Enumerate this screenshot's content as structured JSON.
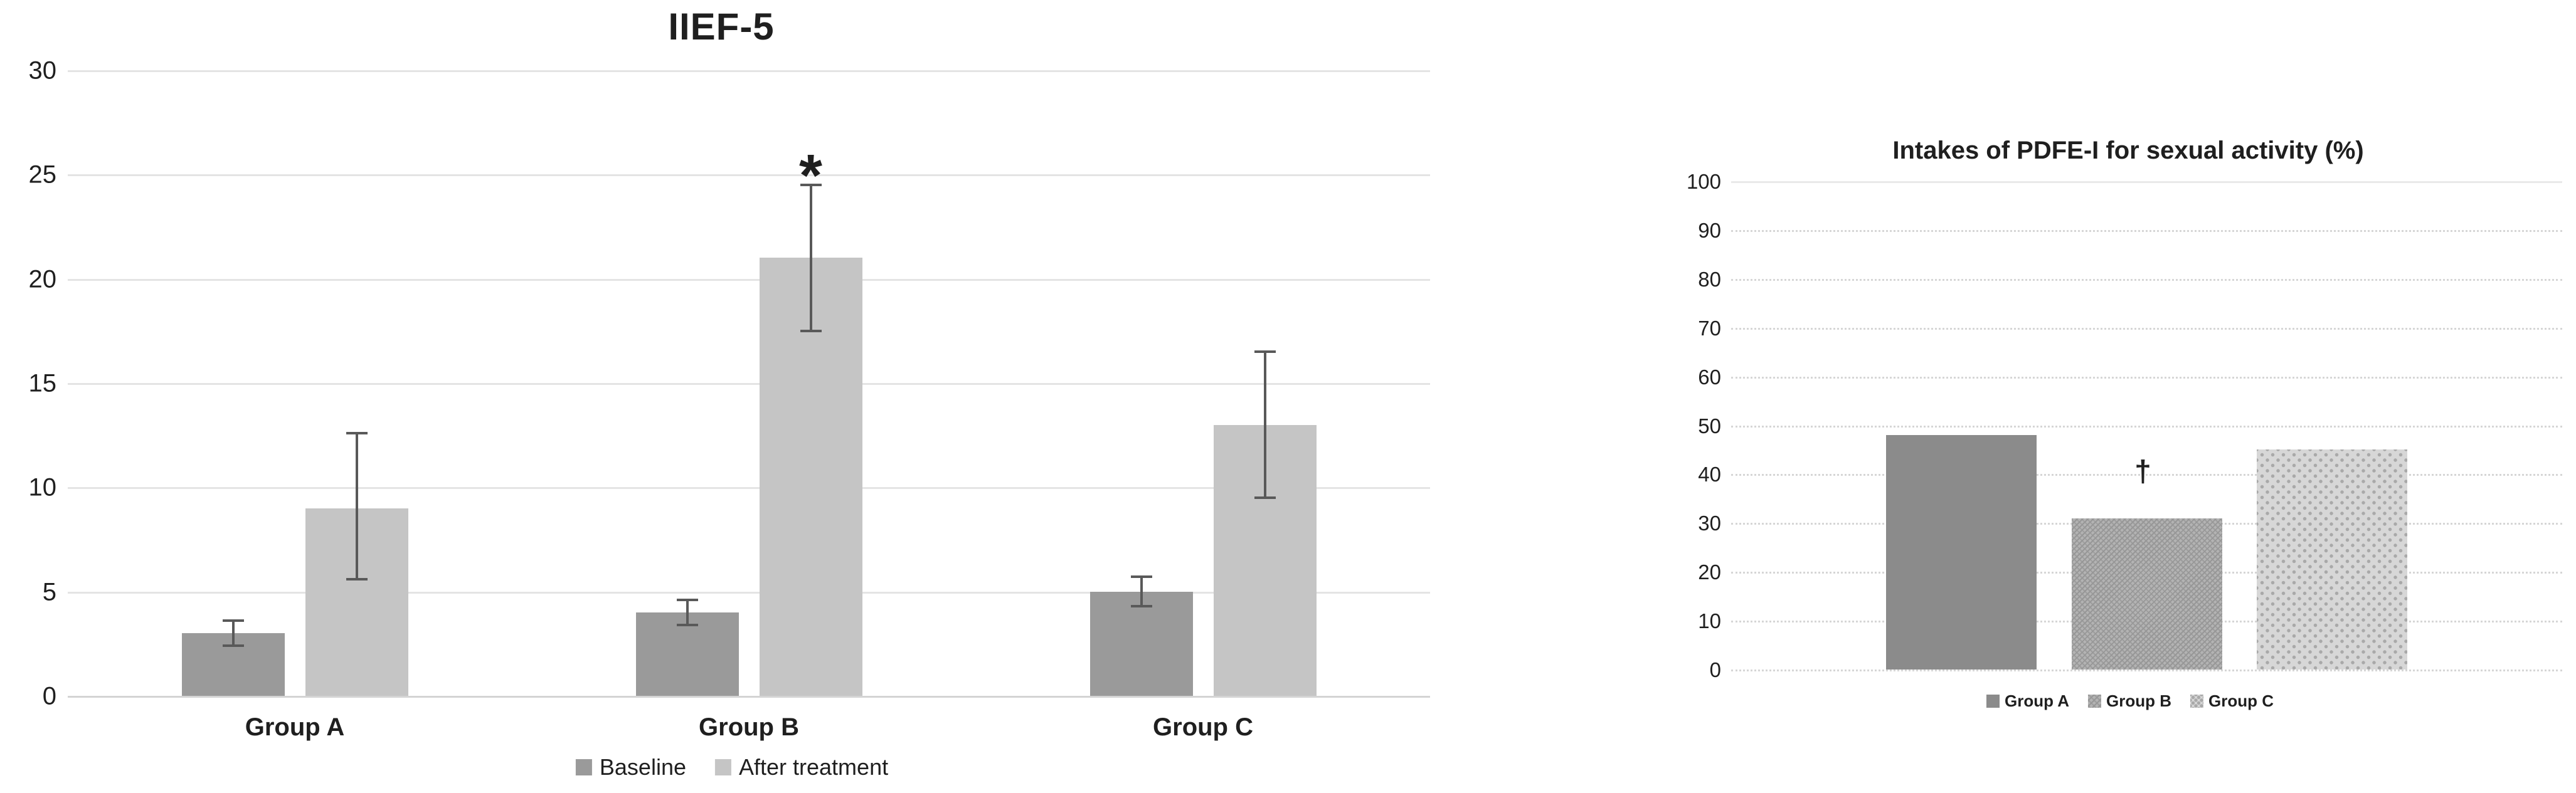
{
  "page": {
    "background": "#ffffff"
  },
  "chart_data": [
    {
      "type": "bar",
      "title": "IIEF-5",
      "categories": [
        "Group A",
        "Group B",
        "Group C"
      ],
      "series": [
        {
          "name": "Baseline",
          "color": "#9a9a9a",
          "values": [
            3,
            4,
            5
          ],
          "error_low": [
            2.4,
            3.4,
            4.3
          ],
          "error_high": [
            3.6,
            4.6,
            5.7
          ]
        },
        {
          "name": "After treatment",
          "color": "#c5c5c5",
          "values": [
            9,
            21,
            13
          ],
          "error_low": [
            5.6,
            17.5,
            9.5
          ],
          "error_high": [
            12.6,
            24.5,
            16.5
          ]
        }
      ],
      "yticks": [
        "0",
        "5",
        "10",
        "15",
        "20",
        "25",
        "30"
      ],
      "ylim": [
        0,
        30
      ],
      "grid": "solid horizontal",
      "legend_position": "bottom",
      "annotations": [
        {
          "text": "*",
          "category": "Group B",
          "series": "After treatment",
          "value": 26
        }
      ]
    },
    {
      "type": "bar",
      "title": "Intakes of PDFE-I for sexual activity (%)",
      "categories": [
        "Group A",
        "Group B",
        "Group C"
      ],
      "values": [
        48,
        31,
        45
      ],
      "bar_styles": [
        {
          "name": "Group A",
          "fill": "#8b8b8b",
          "pattern": "solid"
        },
        {
          "name": "Group B",
          "fill": "#b3b3b3",
          "pattern": "zigzag"
        },
        {
          "name": "Group C",
          "fill": "#d7d7d7",
          "pattern": "dots"
        }
      ],
      "yticks": [
        "0",
        "10",
        "20",
        "30",
        "40",
        "50",
        "60",
        "70",
        "80",
        "90",
        "100"
      ],
      "ylim": [
        0,
        100
      ],
      "grid": "dotted horizontal",
      "legend_position": "bottom",
      "legend": [
        "Group A",
        "Group B",
        "Group C"
      ],
      "annotations": [
        {
          "text": "†",
          "category": "Group B",
          "value": 39.5
        }
      ]
    }
  ]
}
